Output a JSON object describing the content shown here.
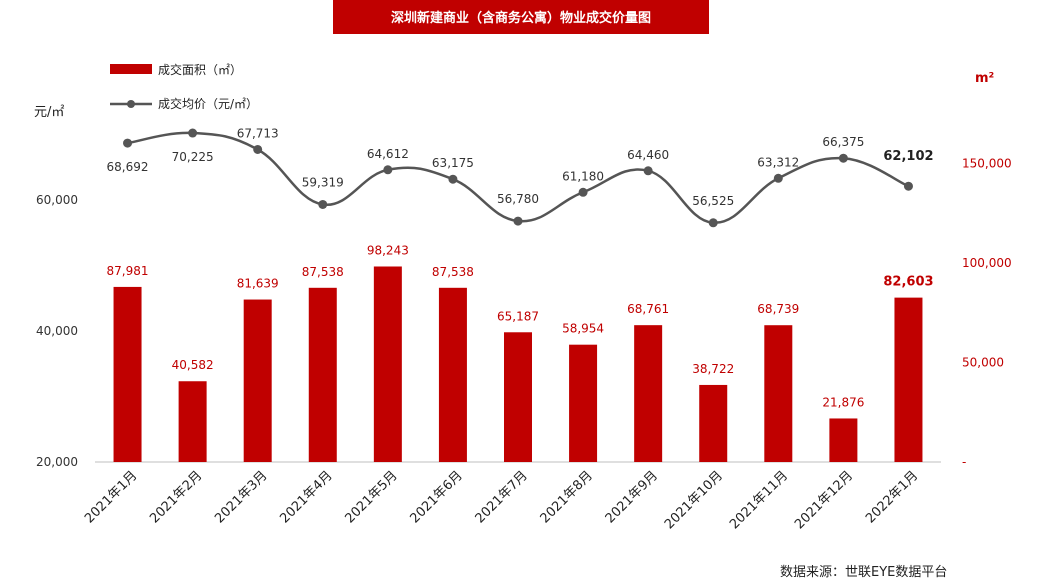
{
  "title": "深圳新建商业（含商务公寓）物业成交价量图",
  "source": "数据来源：世联EYE数据平台",
  "chart_data": {
    "type": "bar",
    "categories": [
      "2021年1月",
      "2021年2月",
      "2021年3月",
      "2021年4月",
      "2021年5月",
      "2021年6月",
      "2021年7月",
      "2021年8月",
      "2021年9月",
      "2021年10月",
      "2021年11月",
      "2021年12月",
      "2022年1月"
    ],
    "series": [
      {
        "name": "成交面积（㎡）",
        "type": "bar",
        "axis": "right",
        "values": [
          87981,
          40582,
          81639,
          87538,
          98243,
          87538,
          65187,
          58954,
          68761,
          38722,
          68739,
          21876,
          82603
        ],
        "labels": [
          "87,981",
          "40,582",
          "81,639",
          "87,538",
          "98,243",
          "87,538",
          "65,187",
          "58,954",
          "68,761",
          "38,722",
          "68,739",
          "21,876",
          "82,603"
        ]
      },
      {
        "name": "成交均价（元/㎡）",
        "type": "line",
        "axis": "left",
        "values": [
          68692,
          70225,
          67713,
          59319,
          64612,
          63175,
          56780,
          61180,
          64460,
          56525,
          63312,
          66375,
          62102
        ],
        "labels": [
          "68,692",
          "70,225",
          "67,713",
          "59,319",
          "64,612",
          "63,175",
          "56,780",
          "61,180",
          "64,460",
          "56,525",
          "63,312",
          "66,375",
          "62,102"
        ]
      }
    ],
    "left_axis": {
      "unit": "元/㎡",
      "range": [
        20000,
        80000
      ],
      "ticks": [
        "20,000",
        "40,000",
        "60,000"
      ]
    },
    "right_axis": {
      "unit": "m²",
      "range": [
        0,
        200000
      ],
      "ticks": [
        "-",
        "50,000",
        "100,000",
        "150,000"
      ]
    },
    "legend_position": "top-left",
    "grid": false,
    "colors": {
      "bar": "#c00000",
      "line": "#555555",
      "title_bg": "#c00000"
    }
  }
}
